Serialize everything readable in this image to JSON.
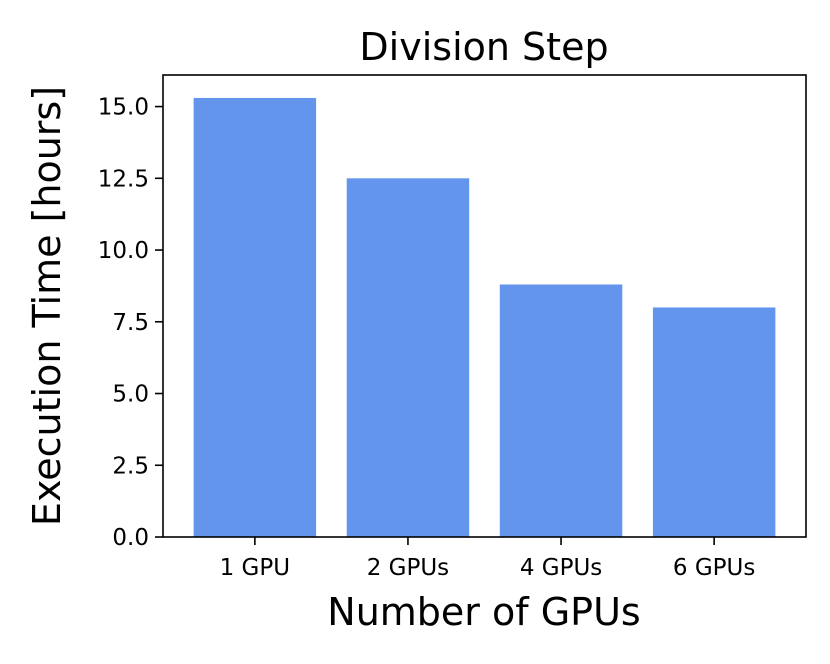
{
  "chart_data": {
    "type": "bar",
    "title": "Division Step",
    "xlabel": "Number of GPUs",
    "ylabel": "Execution Time [hours]",
    "categories": [
      "1 GPU",
      "2 GPUs",
      "4 GPUs",
      "6 GPUs"
    ],
    "values": [
      15.3,
      12.5,
      8.8,
      8.0
    ],
    "ylim": [
      0,
      16.1
    ],
    "yticks": [
      0.0,
      2.5,
      5.0,
      7.5,
      10.0,
      12.5,
      15.0
    ],
    "ytick_labels": [
      "0.0",
      "2.5",
      "5.0",
      "7.5",
      "10.0",
      "12.5",
      "15.0"
    ],
    "bar_color": "#6495ED",
    "grid": false,
    "legend": "none"
  }
}
